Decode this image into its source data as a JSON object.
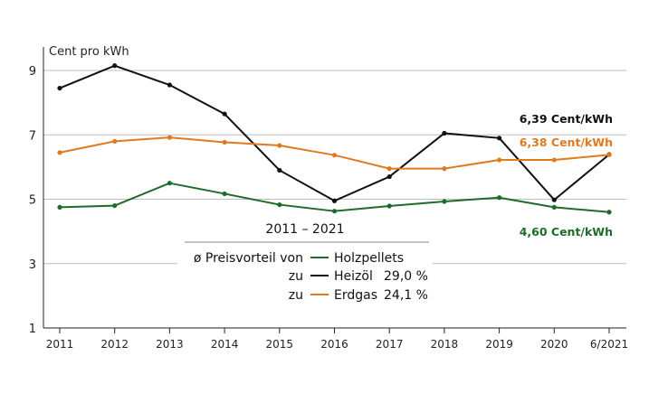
{
  "chart_data": {
    "type": "line",
    "ylabel": "Cent pro kWh",
    "ylim": [
      1,
      9
    ],
    "yticks": [
      1,
      3,
      5,
      7,
      9
    ],
    "categories": [
      "2011",
      "2012",
      "2013",
      "2014",
      "2015",
      "2016",
      "2017",
      "2018",
      "2019",
      "2020",
      "6/2021"
    ],
    "series": [
      {
        "key": "heizoel",
        "name": "Heizöl",
        "color": "#111111",
        "values": [
          8.45,
          9.15,
          8.55,
          7.65,
          5.9,
          4.95,
          5.7,
          7.05,
          6.9,
          4.98,
          6.39
        ]
      },
      {
        "key": "erdgas",
        "name": "Erdgas",
        "color": "#e07a1f",
        "values": [
          6.45,
          6.8,
          6.92,
          6.77,
          6.67,
          6.37,
          5.95,
          5.95,
          6.22,
          6.22,
          6.38
        ]
      },
      {
        "key": "holzpellets",
        "name": "Holzpellets",
        "color": "#1f6b2b",
        "values": [
          4.75,
          4.8,
          5.5,
          5.17,
          4.83,
          4.63,
          4.79,
          4.93,
          5.05,
          4.75,
          4.6
        ]
      }
    ],
    "end_labels": [
      {
        "text": "6,39 Cent/kWh",
        "color": "#111111"
      },
      {
        "text": "6,38 Cent/kWh",
        "color": "#e07a1f"
      },
      {
        "text": "4,60 Cent/kWh",
        "color": "#1f6b2b"
      }
    ],
    "grid": true,
    "legend": {
      "placement": "center",
      "period": "2011 – 2021",
      "heading": "ø Preisvorteil von",
      "rows": [
        {
          "prefix": "",
          "name": "Holzpellets",
          "value": "",
          "color": "#1f6b2b"
        },
        {
          "prefix": "zu",
          "name": "Heizöl",
          "value": "29,0 %",
          "color": "#111111"
        },
        {
          "prefix": "zu",
          "name": "Erdgas",
          "value": "24,1 %",
          "color": "#e07a1f"
        }
      ]
    }
  }
}
